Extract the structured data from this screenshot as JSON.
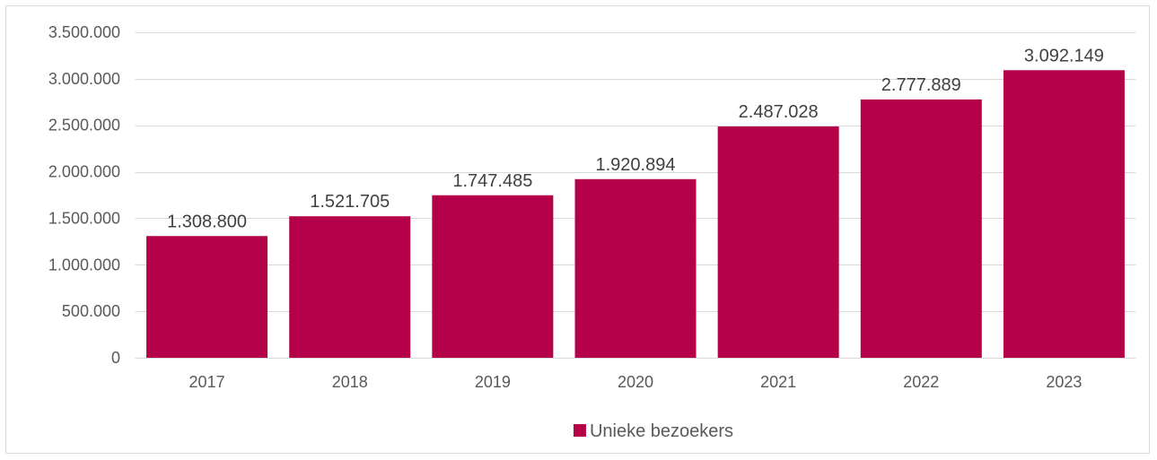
{
  "chart_data": {
    "type": "bar",
    "title": "",
    "xlabel": "",
    "ylabel": "",
    "categories": [
      "2017",
      "2018",
      "2019",
      "2020",
      "2021",
      "2022",
      "2023"
    ],
    "series": [
      {
        "name": "Unieke bezoekers",
        "values": [
          1308800,
          1521705,
          1747485,
          1920894,
          2487028,
          2777889,
          3092149
        ],
        "labels": [
          "1.308.800",
          "1.521.705",
          "1.747.485",
          "1.920.894",
          "2.487.028",
          "2.777.889",
          "3.092.149"
        ],
        "color": "#b5004a"
      }
    ],
    "ylim": [
      0,
      3500000
    ],
    "yticks": [
      0,
      500000,
      1000000,
      1500000,
      2000000,
      2500000,
      3000000,
      3500000
    ],
    "ytick_labels": [
      "0",
      "500.000",
      "1.000.000",
      "1.500.000",
      "2.000.000",
      "2.500.000",
      "3.000.000",
      "3.500.000"
    ],
    "grid": true,
    "legend_position": "bottom"
  },
  "colors": {
    "bar": "#b5004a",
    "grid": "#d9d9d9",
    "axis_text": "#595959",
    "label_text": "#404040"
  }
}
